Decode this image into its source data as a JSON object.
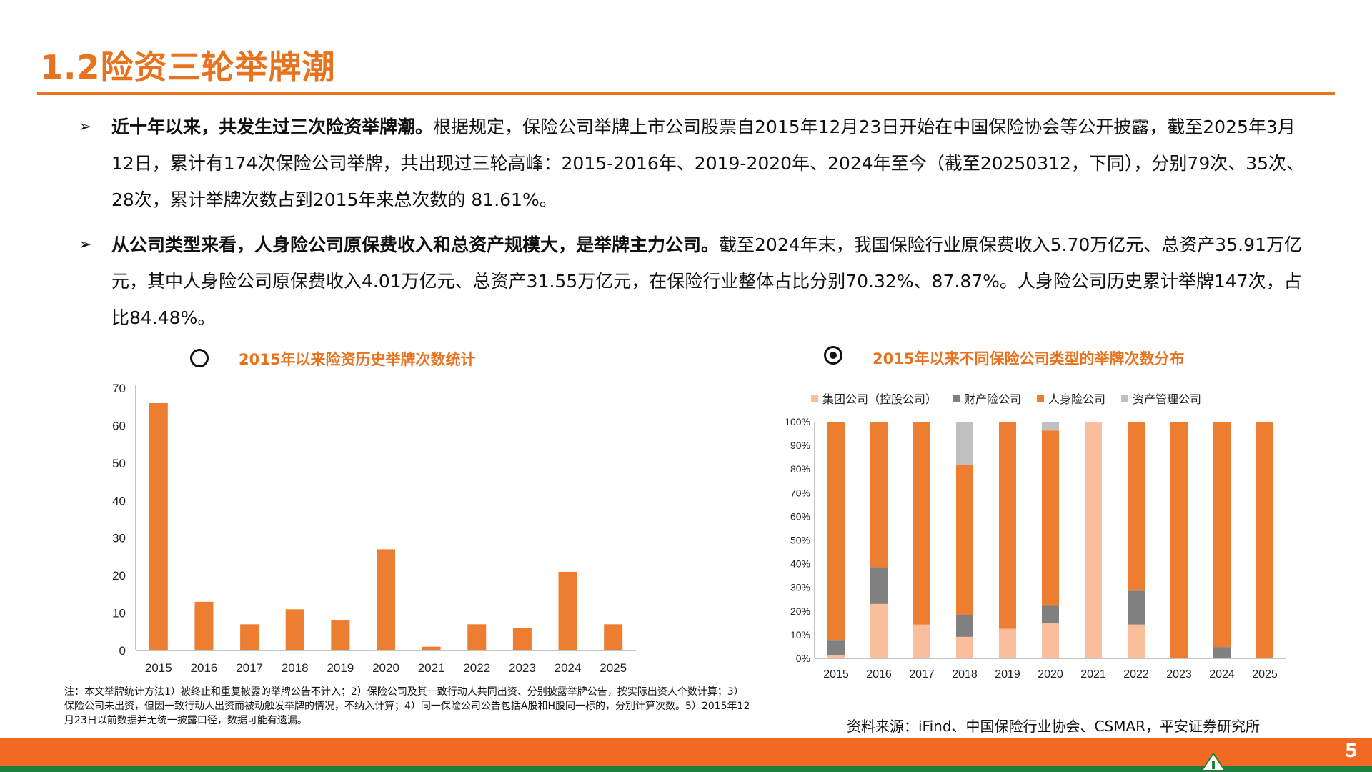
{
  "page": {
    "title": "1.2险资三轮举牌潮",
    "page_number": "5"
  },
  "bullets": [
    {
      "bold": "近十年以来，共发生过三次险资举牌潮。",
      "text": "根据规定，保险公司举牌上市公司股票自2015年12月23日开始在中国保险协会等公开披露，截至2025年3月12日，累计有174次保险公司举牌，共出现过三轮高峰：2015-2016年、2019-2020年、2024年至今（截至20250312，下同），分别79次、35次、28次，累计举牌次数占到2015年来总次数的 81.61%。"
    },
    {
      "bold": "从公司类型来看，人身险公司原保费收入和总资产规模大，是举牌主力公司。",
      "text": "截至2024年末，我国保险行业原保费收入5.70万亿元、总资产35.91万亿元，其中人身险公司原保费收入4.01万亿元、总资产31.55万亿元，在保险行业整体占比分别70.32%、87.87%。人身险公司历史累计举牌147次，占比84.48%。"
    }
  ],
  "chart_titles": {
    "left": "2015年以来险资历史举牌次数统计",
    "right": "2015年以来不同保险公司类型的举牌次数分布"
  },
  "chart_data": [
    {
      "type": "bar",
      "title": "2015年以来险资历史举牌次数统计",
      "categories": [
        "2015",
        "2016",
        "2017",
        "2018",
        "2019",
        "2020",
        "2021",
        "2022",
        "2023",
        "2024",
        "2025"
      ],
      "values": [
        66,
        13,
        7,
        11,
        8,
        27,
        1,
        7,
        6,
        21,
        7
      ],
      "ylim": [
        0,
        70
      ],
      "yticks": [
        0,
        10,
        20,
        30,
        40,
        50,
        60,
        70
      ],
      "color": "#ED7D31"
    },
    {
      "type": "bar",
      "stacked": true,
      "percent": true,
      "title": "2015年以来不同保险公司类型的举牌次数分布",
      "categories": [
        "2015",
        "2016",
        "2017",
        "2018",
        "2019",
        "2020",
        "2021",
        "2022",
        "2023",
        "2024",
        "2025"
      ],
      "yticks": [
        "0%",
        "10%",
        "20%",
        "30%",
        "40%",
        "50%",
        "60%",
        "70%",
        "80%",
        "90%",
        "100%"
      ],
      "legend_position": "top",
      "series": [
        {
          "name": "集团公司（控股公司）",
          "color": "#F8BF9A",
          "values": [
            1.5,
            23,
            14.3,
            9.1,
            12.5,
            14.8,
            100,
            14.3,
            0,
            0,
            0
          ]
        },
        {
          "name": "财产险公司",
          "color": "#808080",
          "values": [
            6,
            15.5,
            0,
            9.1,
            0,
            7.4,
            0,
            14.3,
            0,
            4.8,
            0
          ]
        },
        {
          "name": "人身险公司",
          "color": "#ED7D31",
          "values": [
            92.5,
            61.5,
            85.7,
            63.6,
            87.5,
            74.1,
            0,
            71.4,
            100,
            95.2,
            100
          ]
        },
        {
          "name": "资产管理公司",
          "color": "#C0C0C0",
          "values": [
            0,
            0,
            0,
            18.2,
            0,
            3.7,
            0,
            0,
            0,
            0,
            0
          ]
        }
      ]
    }
  ],
  "note": "注：本文举牌统计方法1）被终止和重复披露的举牌公告不计入；2）保险公司及其一致行动人共同出资、分别披露举牌公告，按实际出资人个数计算；3）保险公司未出资，但因一致行动人出资而被动触发举牌的情况，不纳入计算；4）同一保险公司公告包括A股和H股同一标的，分别计算次数。5）2015年12月23日以前数据并无统一披露口径，数据可能有遗漏。",
  "source": "资料来源：iFind、中国保险行业协会、CSMAR，平安证券研究所"
}
